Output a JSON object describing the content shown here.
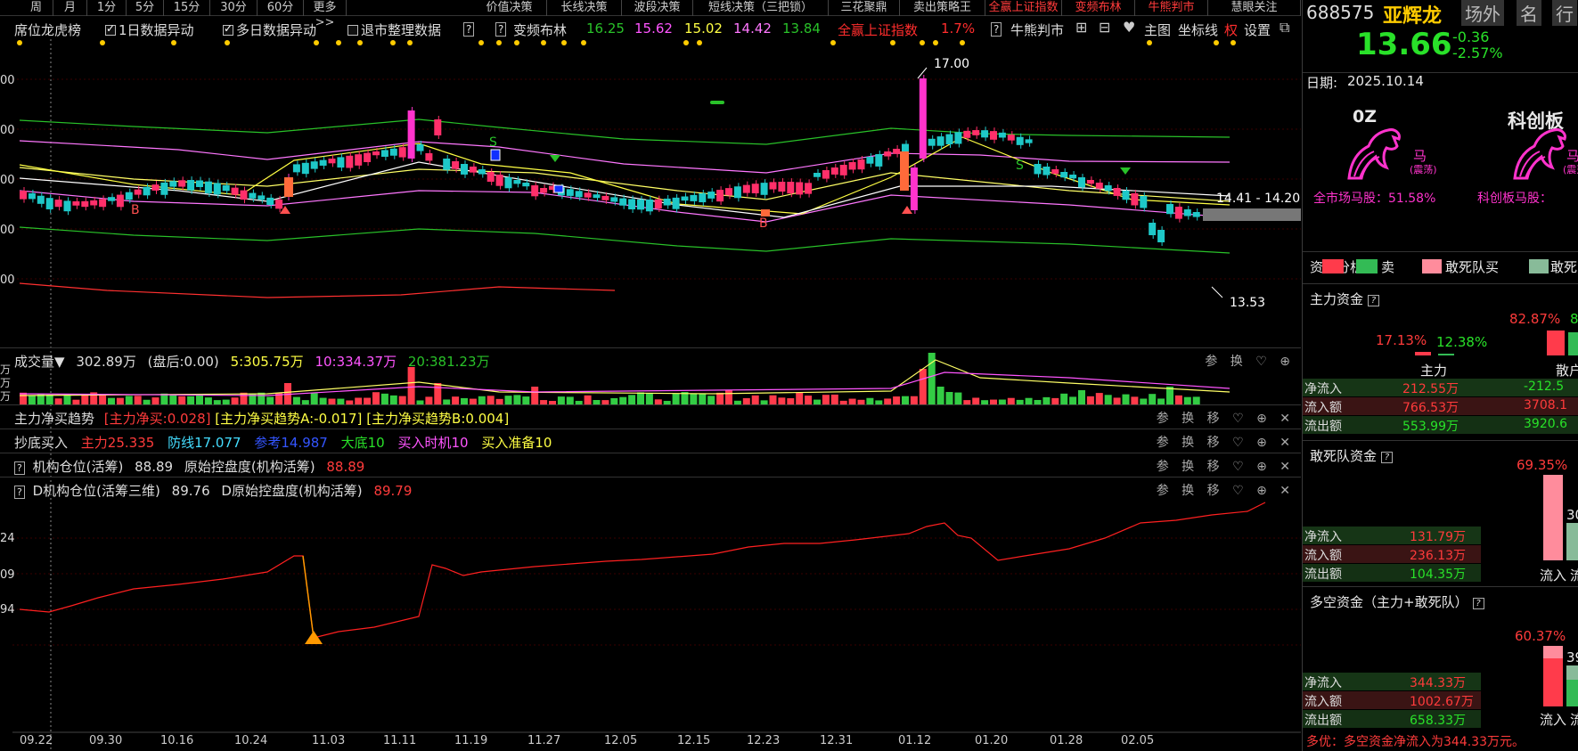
{
  "period_tabs": [
    {
      "label": "周",
      "color": "normal"
    },
    {
      "label": "月",
      "color": "normal"
    },
    {
      "label": "1分",
      "color": "normal"
    },
    {
      "label": "5分",
      "color": "normal"
    },
    {
      "label": "15分",
      "color": "normal"
    },
    {
      "label": "30分",
      "color": "normal"
    },
    {
      "label": "60分",
      "color": "normal"
    },
    {
      "label": "更多>>",
      "color": "normal"
    },
    {
      "label": "价值决策",
      "color": "normal"
    },
    {
      "label": "长线决策",
      "color": "normal"
    },
    {
      "label": "波段决策",
      "color": "normal"
    },
    {
      "label": "短线决策（三把锁）",
      "color": "normal"
    },
    {
      "label": "三花聚鼎",
      "color": "normal"
    },
    {
      "label": "卖出策略王",
      "color": "normal"
    },
    {
      "label": "全赢上证指数",
      "color": "red"
    },
    {
      "label": "变频布林",
      "color": "red"
    },
    {
      "label": "牛熊判市",
      "color": "red"
    },
    {
      "label": "慧眼关注",
      "color": "normal"
    }
  ],
  "toolbar": {
    "seat_rank": "席位龙虎榜",
    "one_day": "1日数据异动",
    "multi_day": "多日数据异动",
    "delist": "退市整理数据",
    "help": "?",
    "boll_name": "变频布林",
    "boll_vals": [
      "16.25",
      "15.62",
      "15.02",
      "14.42",
      "13.84"
    ],
    "index_name": "全赢上证指数",
    "index_pct": "1.7%",
    "bull_bear": "牛熊判市",
    "main_chart": "主图",
    "coord_line": "坐标线",
    "auth": "权",
    "settings": "设置",
    "colors": {
      "bv1": "#29c129",
      "bv2": "#ff55ff",
      "bv3": "#ffff44",
      "bv4": "#ff77ff",
      "bv5": "#29c129",
      "accent_red": "#ff2d2d"
    }
  },
  "price_axis": [
    "00",
    "00",
    "00",
    "00",
    "00"
  ],
  "price_annotations": {
    "high": "17.00",
    "low": "13.53",
    "range_label": "14.41 - 14.20"
  },
  "signals": {
    "b": "B",
    "s": "S"
  },
  "volume_panel": {
    "title": "成交量▼",
    "value": "302.89万",
    "after_hours": "(盘后:0.00)",
    "ma5": "5:305.75万",
    "ma10": "10:334.37万",
    "ma20": "20:381.23万",
    "axis": [
      "万",
      "万",
      "万"
    ]
  },
  "panels": {
    "p1": {
      "title": "主力净买趋势",
      "a": "[主力净买:0.028]",
      "b": "[主力净买趋势A:-0.017]",
      "c": "[主力净买趋势B:0.004]"
    },
    "p2": {
      "title": "抄底买入",
      "a": "主力25.335",
      "b": "防线17.077",
      "c": "参考14.987",
      "d": "大底10",
      "e": "买入时机10",
      "f": "买入准备10"
    },
    "p3": {
      "title": "机构仓位(活筹)",
      "a": "88.89",
      "b": "原始控盘度(机构活筹)",
      "c": "88.89"
    },
    "p4": {
      "title": "D机构仓位(活筹三维)",
      "a": "89.76",
      "b": "D原始控盘度(机构活筹)",
      "c": "89.79"
    }
  },
  "panel_tools": [
    "参",
    "换",
    "移",
    "♡",
    "⊕",
    "✕"
  ],
  "bottom_axis": [
    "24",
    "09",
    "94"
  ],
  "dates": [
    "09.22",
    "09.30",
    "10.16",
    "10.24",
    "11.03",
    "11.11",
    "11.19",
    "11.27",
    "12.05",
    "12.15",
    "12.23",
    "12.31",
    "01.12",
    "01.20",
    "01.28",
    "02.05"
  ],
  "right_panel": {
    "code": "688575",
    "name": "亚辉龙",
    "tabs": [
      "场外",
      "名",
      "行"
    ],
    "price": "13.66",
    "change": "-0.36",
    "change_pct": "-2.57%",
    "date_label": "日期:",
    "date": "2025.10.14",
    "horse1_title": "0Z",
    "horse1_tag": "马",
    "horse1_sub": "(震荡)",
    "horse1_caption": "全市场马股：51.58%",
    "horse2_title": "科创板",
    "horse2_tag": "马",
    "horse2_sub": "(震荡)",
    "horse2_caption": "科创板马股：",
    "legend": {
      "title": "资金分析",
      "sell": "卖",
      "dare_buy": "敢死队买",
      "dare_sell": "敢死"
    },
    "main_funds": {
      "title": "主力资金",
      "pct_red": "17.13%",
      "pct_green": "12.38%",
      "pct_big_red": "82.87%",
      "pct_big_green": "8",
      "lbl_main": "主力",
      "lbl_retail": "散户",
      "rows": [
        {
          "k": "净流入",
          "v1": "212.55万",
          "v2": "-212.5"
        },
        {
          "k": "流入额",
          "v1": "766.53万",
          "v2": "3708.1"
        },
        {
          "k": "流出额",
          "v1": "553.99万",
          "v2": "3920.6"
        }
      ]
    },
    "dare_funds": {
      "title": "敢死队资金",
      "pct_in": "69.35%",
      "pct_out": "30",
      "lbl_in": "流入",
      "lbl_out": "流",
      "rows": [
        {
          "k": "净流入",
          "v": "131.79万"
        },
        {
          "k": "流入额",
          "v": "236.13万"
        },
        {
          "k": "流出额",
          "v": "104.35万"
        }
      ]
    },
    "long_short": {
      "title": "多空资金（主力+敢死队）",
      "pct_in": "60.37%",
      "pct_out": "39",
      "lbl_in": "流入",
      "lbl_out": "流",
      "rows": [
        {
          "k": "净流入",
          "v": "344.33万"
        },
        {
          "k": "流入额",
          "v": "1002.67万"
        },
        {
          "k": "流出额",
          "v": "658.33万"
        }
      ]
    },
    "footer": "多优：多空资金净流入为344.33万元。"
  }
}
